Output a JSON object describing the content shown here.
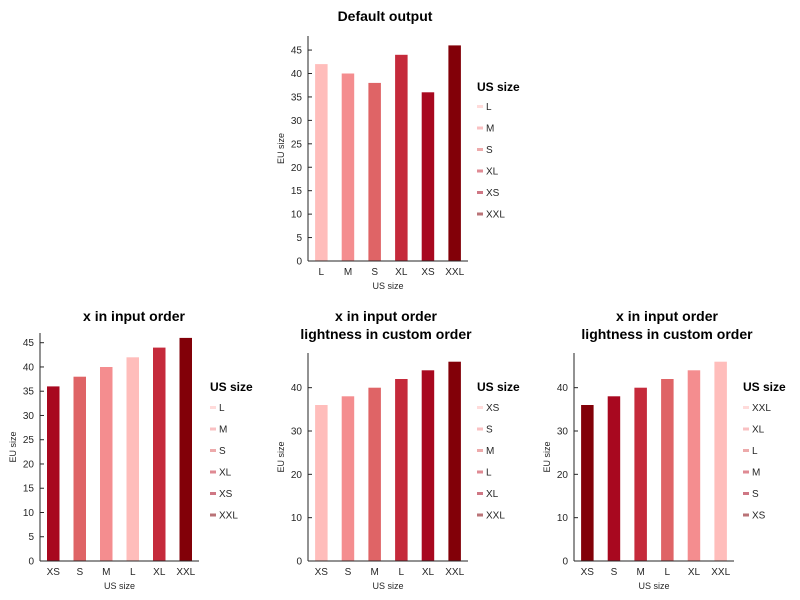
{
  "colors": {
    "L": "#ffbdbb",
    "M": "#f48d8f",
    "S": "#df6466",
    "XL": "#c52a3b",
    "XS": "#a8081f",
    "XXL": "#820008"
  },
  "chart_data": [
    {
      "type": "bar",
      "title_lines": [
        "Default output"
      ],
      "xlabel": "US size",
      "ylabel": "EU size",
      "ylim": [
        0,
        48
      ],
      "yticks": [
        0,
        5,
        10,
        15,
        20,
        25,
        30,
        35,
        40,
        45
      ],
      "categories": [
        "L",
        "M",
        "S",
        "XL",
        "XS",
        "XXL"
      ],
      "values": [
        42,
        40,
        38,
        44,
        36,
        46
      ],
      "legend": {
        "title": "US size",
        "entries": [
          "L",
          "M",
          "S",
          "XL",
          "XS",
          "XXL"
        ],
        "position": "right"
      }
    },
    {
      "type": "bar",
      "title_lines": [
        "x in input order"
      ],
      "xlabel": "US size",
      "ylabel": "EU size",
      "ylim": [
        0,
        47
      ],
      "yticks": [
        0,
        5,
        10,
        15,
        20,
        25,
        30,
        35,
        40,
        45
      ],
      "categories": [
        "XS",
        "S",
        "M",
        "L",
        "XL",
        "XXL"
      ],
      "values": [
        36,
        38,
        40,
        42,
        44,
        46
      ],
      "legend": {
        "title": "US size",
        "entries": [
          "L",
          "M",
          "S",
          "XL",
          "XS",
          "XXL"
        ],
        "position": "right"
      }
    },
    {
      "type": "bar",
      "title_lines": [
        "x in input order",
        "lightness in custom order"
      ],
      "xlabel": "US size",
      "ylabel": "EU size",
      "ylim": [
        0,
        48
      ],
      "yticks": [
        0,
        10,
        20,
        30,
        40
      ],
      "categories": [
        "XS",
        "S",
        "M",
        "L",
        "XL",
        "XXL"
      ],
      "values": [
        36,
        38,
        40,
        42,
        44,
        46
      ],
      "legend": {
        "title": "US size",
        "entries": [
          "XS",
          "S",
          "M",
          "L",
          "XL",
          "XXL"
        ],
        "position": "right"
      }
    },
    {
      "type": "bar",
      "title_lines": [
        "x in input order",
        "lightness in custom order"
      ],
      "xlabel": "US size",
      "ylabel": "EU size",
      "ylim": [
        0,
        48
      ],
      "yticks": [
        0,
        10,
        20,
        30,
        40
      ],
      "categories": [
        "XS",
        "S",
        "M",
        "L",
        "XL",
        "XXL"
      ],
      "values": [
        36,
        38,
        40,
        42,
        44,
        46
      ],
      "legend": {
        "title": "US size",
        "entries": [
          "XXL",
          "XL",
          "L",
          "M",
          "S",
          "XS"
        ],
        "position": "right"
      }
    }
  ]
}
